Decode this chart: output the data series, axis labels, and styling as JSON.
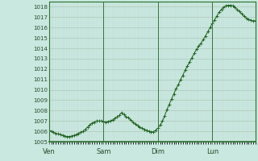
{
  "bg_color": "#c8e8e0",
  "plot_bg_color": "#c8e8e0",
  "grid_major_color": "#b0c8b8",
  "grid_minor_color": "#c0d8c8",
  "line_color": "#1a5e1a",
  "marker_color": "#1a5e1a",
  "axis_line_color": "#2a6e2a",
  "ylim": [
    1005,
    1018.5
  ],
  "yticks": [
    1005,
    1006,
    1007,
    1008,
    1009,
    1010,
    1011,
    1012,
    1013,
    1014,
    1015,
    1016,
    1017,
    1018
  ],
  "day_labels": [
    "Ven",
    "Sam",
    "Dim",
    "Lun"
  ],
  "day_positions": [
    0,
    24,
    48,
    72
  ],
  "pressure_data": [
    1006.1,
    1006.0,
    1005.9,
    1005.8,
    1005.75,
    1005.7,
    1005.6,
    1005.55,
    1005.5,
    1005.5,
    1005.55,
    1005.6,
    1005.7,
    1005.8,
    1005.9,
    1006.0,
    1006.2,
    1006.4,
    1006.6,
    1006.8,
    1006.9,
    1007.0,
    1007.0,
    1007.0,
    1006.95,
    1006.9,
    1006.95,
    1007.0,
    1007.1,
    1007.25,
    1007.4,
    1007.55,
    1007.8,
    1007.6,
    1007.4,
    1007.3,
    1007.1,
    1006.9,
    1006.7,
    1006.55,
    1006.4,
    1006.3,
    1006.2,
    1006.1,
    1006.0,
    1005.95,
    1005.95,
    1006.1,
    1006.3,
    1006.6,
    1007.0,
    1007.5,
    1008.1,
    1008.6,
    1009.1,
    1009.6,
    1010.1,
    1010.5,
    1011.0,
    1011.4,
    1011.9,
    1012.3,
    1012.7,
    1013.1,
    1013.5,
    1013.9,
    1014.2,
    1014.5,
    1014.85,
    1015.2,
    1015.6,
    1016.0,
    1016.4,
    1016.75,
    1017.1,
    1017.5,
    1017.75,
    1017.95,
    1018.1,
    1018.15,
    1018.15,
    1018.1,
    1017.95,
    1017.75,
    1017.55,
    1017.3,
    1017.1,
    1016.9,
    1016.8,
    1016.7,
    1016.65,
    1016.65
  ]
}
